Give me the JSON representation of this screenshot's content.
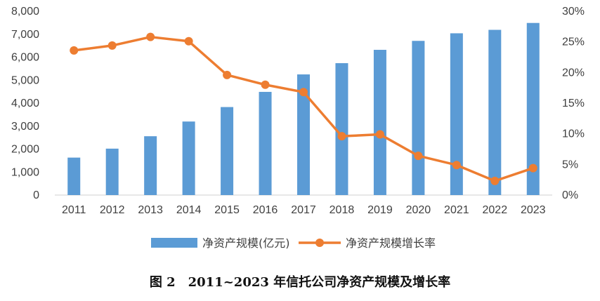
{
  "chart_data": {
    "type": "bar+line",
    "title": "",
    "categories": [
      "2011",
      "2012",
      "2013",
      "2014",
      "2015",
      "2016",
      "2017",
      "2018",
      "2019",
      "2020",
      "2021",
      "2022",
      "2023"
    ],
    "series": [
      {
        "name": "净资产规模(亿元)",
        "type": "bar",
        "axis": "left",
        "color": "#5b9bd5",
        "values": [
          1630,
          2020,
          2560,
          3200,
          3830,
          4490,
          5250,
          5740,
          6320,
          6710,
          7040,
          7190,
          7490
        ]
      },
      {
        "name": "净资产规模增长率",
        "type": "line",
        "axis": "right",
        "color": "#ed7d31",
        "values": [
          23.6,
          24.4,
          25.8,
          25.1,
          19.6,
          18.0,
          16.8,
          9.6,
          9.9,
          6.4,
          4.9,
          2.3,
          4.4
        ]
      }
    ],
    "yleft": {
      "min": 0,
      "max": 8000,
      "ticks": [
        "0",
        "1,000",
        "2,000",
        "3,000",
        "4,000",
        "5,000",
        "6,000",
        "7,000",
        "8,000"
      ]
    },
    "yright": {
      "min": 0,
      "max": 30,
      "ticks": [
        "0%",
        "5%",
        "10%",
        "15%",
        "20%",
        "25%",
        "30%"
      ]
    },
    "grid": false,
    "legend_position": "bottom"
  },
  "caption": "图 2　2011~2023 年信托公司净资产规模及增长率"
}
